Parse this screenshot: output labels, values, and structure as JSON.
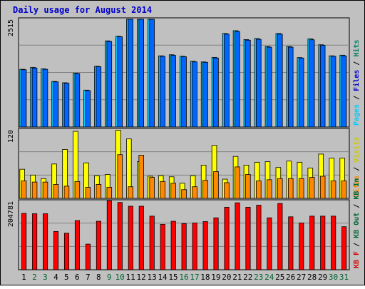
{
  "title": "Daily usage for August 2014",
  "colors": {
    "background": "#c0c0c0",
    "border": "#000000",
    "title_text": "#0000cc",
    "gridline": "#808080",
    "hits": "#00ccff",
    "files": "#0066ff",
    "pages": "#00ccff",
    "sites": "#ff8800",
    "visits": "#ffff00",
    "kb_in": "#ff0000",
    "kb_out": "#cc0000",
    "weekday_label": "#000000",
    "weekend_label": "#006633"
  },
  "chart_data": [
    {
      "type": "bar",
      "title": "Daily usage for August 2014",
      "categories": [
        "1",
        "2",
        "3",
        "4",
        "5",
        "6",
        "7",
        "8",
        "9",
        "10",
        "11",
        "12",
        "13",
        "14",
        "15",
        "16",
        "17",
        "18",
        "19",
        "20",
        "21",
        "22",
        "23",
        "24",
        "25",
        "26",
        "27",
        "28",
        "29",
        "30",
        "31"
      ],
      "weekend_days": [
        "2",
        "3",
        "9",
        "10",
        "16",
        "17",
        "23",
        "24",
        "30",
        "31"
      ],
      "ylabel_max": "2515",
      "ylim": [
        0,
        2515
      ],
      "right_label": [
        "Hits",
        "Files",
        "Pages"
      ],
      "series": [
        {
          "name": "Hits",
          "values": [
            1330,
            1375,
            1340,
            1050,
            1020,
            1240,
            850,
            1400,
            1985,
            2090,
            2515,
            2515,
            2515,
            1640,
            1665,
            1630,
            1515,
            1500,
            1605,
            2155,
            2220,
            2015,
            2040,
            1855,
            2155,
            1855,
            1600,
            2030,
            1895,
            1640,
            1655
          ]
        },
        {
          "name": "Files",
          "values": [
            1320,
            1360,
            1330,
            1040,
            1010,
            1230,
            840,
            1390,
            1970,
            2080,
            2500,
            2500,
            2490,
            1630,
            1650,
            1620,
            1500,
            1490,
            1590,
            2140,
            2200,
            2000,
            2020,
            1840,
            2140,
            1840,
            1590,
            2010,
            1880,
            1630,
            1640
          ]
        }
      ]
    },
    {
      "type": "bar",
      "ylabel_max": "120",
      "ylim": [
        0,
        120
      ],
      "right_label": [
        "Visits",
        "Sites"
      ],
      "series": [
        {
          "name": "Visits",
          "values": [
            50,
            40,
            34,
            59,
            84,
            115,
            61,
            39,
            41,
            117,
            102,
            63,
            38,
            39,
            37,
            26,
            39,
            57,
            91,
            33,
            72,
            57,
            62,
            63,
            53,
            64,
            62,
            52,
            76,
            69,
            69
          ]
        },
        {
          "name": "Sites",
          "values": [
            30,
            28,
            28,
            24,
            21,
            29,
            19,
            24,
            19,
            75,
            20,
            74,
            36,
            29,
            26,
            15,
            20,
            31,
            46,
            27,
            54,
            41,
            30,
            32,
            34,
            34,
            34,
            36,
            38,
            30,
            30
          ]
        }
      ]
    },
    {
      "type": "bar",
      "ylabel_max": "204781",
      "ylim": [
        0,
        204781
      ],
      "right_label": [
        "KB In",
        "KB Out",
        "KB F"
      ],
      "series": [
        {
          "name": "KB F",
          "values": [
            165000,
            164000,
            164000,
            112000,
            107000,
            144000,
            75000,
            142000,
            202000,
            197000,
            186000,
            186000,
            157000,
            133000,
            142000,
            135000,
            137000,
            141000,
            152000,
            183000,
            196000,
            183000,
            189000,
            152000,
            194000,
            155000,
            137000,
            157000,
            157000,
            157000,
            126000
          ]
        }
      ]
    }
  ]
}
